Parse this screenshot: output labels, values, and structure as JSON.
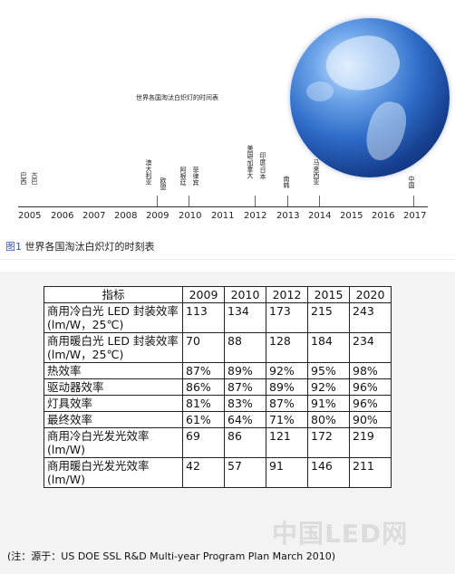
{
  "figure": {
    "inner_title": "世界各国淘汰白炽灯的时间表",
    "years": [
      "2005",
      "2006",
      "2007",
      "2008",
      "2009",
      "2010",
      "2011",
      "2012",
      "2013",
      "2014",
      "2015",
      "2016",
      "2017"
    ],
    "countries": [
      {
        "label": "巴西",
        "year": "2005"
      },
      {
        "label": "古巴",
        "year": "2005"
      },
      {
        "label": "澳大利亚",
        "year": "2009"
      },
      {
        "label": "欧盟",
        "year": "2009"
      },
      {
        "label": "阿根廷",
        "year": "2010"
      },
      {
        "label": "菲律宾",
        "year": "2010"
      },
      {
        "label": "美国/加拿大",
        "year": "2012"
      },
      {
        "label": "印度/日本",
        "year": "2012"
      },
      {
        "label": "南韩",
        "year": "2013"
      },
      {
        "label": "马来西亚",
        "year": "2014"
      },
      {
        "label": "中国",
        "year": "2017"
      }
    ],
    "caption_label": "图1",
    "caption_text": "世界各国淘汰白炽灯的时刻表"
  },
  "table": {
    "headers": [
      "指标",
      "2009",
      "2010",
      "2012",
      "2015",
      "2020"
    ],
    "rows": [
      [
        "商用冷白光 LED 封装效率(lm/W，25℃)",
        "113",
        "134",
        "173",
        "215",
        "243"
      ],
      [
        "商用暖白光 LED 封装效率(lm/W，25℃)",
        "70",
        "88",
        "128",
        "184",
        "234"
      ],
      [
        "热效率",
        "87%",
        "89%",
        "92%",
        "95%",
        "98%"
      ],
      [
        "驱动器效率",
        "86%",
        "87%",
        "89%",
        "92%",
        "96%"
      ],
      [
        "灯具效率",
        "81%",
        "83%",
        "87%",
        "91%",
        "96%"
      ],
      [
        "最终效率",
        "61%",
        "64%",
        "71%",
        "80%",
        "90%"
      ],
      [
        "商用冷白光发光效率(lm/W)",
        "69",
        "86",
        "121",
        "172",
        "219"
      ],
      [
        "商用暖白光发光效率(lm/W)",
        "42",
        "57",
        "91",
        "146",
        "211"
      ]
    ]
  },
  "watermark": "中国LED网",
  "note": "(注：源于：US DOE SSL R&D Multi-year Program Plan March 2010)"
}
